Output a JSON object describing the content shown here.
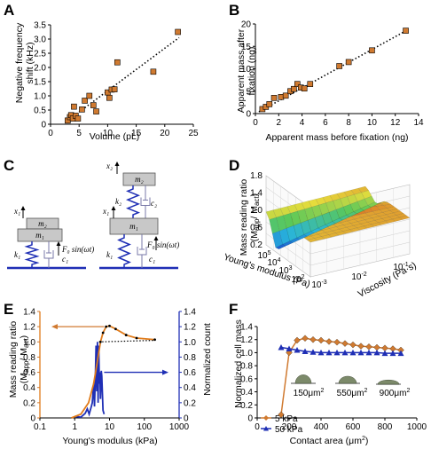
{
  "panel_letters": [
    "A",
    "B",
    "C",
    "D",
    "E",
    "F"
  ],
  "chart_data": [
    {
      "panel": "A",
      "type": "scatter",
      "xlabel": "Volume (pL)",
      "ylabel": "Negative frequency shift (kHz)",
      "xlim": [
        0,
        25
      ],
      "ylim": [
        0,
        3.5
      ],
      "xticks": [
        "0",
        "5",
        "10",
        "15",
        "20",
        "25"
      ],
      "yticks": [
        "0",
        "0.5",
        "1.0",
        "1.5",
        "2.0",
        "2.5",
        "3.0",
        "3.5"
      ],
      "points": [
        [
          3,
          0.13
        ],
        [
          3.4,
          0.25
        ],
        [
          3.6,
          0.32
        ],
        [
          3.9,
          0.2
        ],
        [
          4.1,
          0.62
        ],
        [
          4.4,
          0.3
        ],
        [
          4.8,
          0.2
        ],
        [
          5.5,
          0.52
        ],
        [
          6,
          0.83
        ],
        [
          6.8,
          1.0
        ],
        [
          7.5,
          0.67
        ],
        [
          8,
          0.45
        ],
        [
          10,
          1.12
        ],
        [
          10.3,
          0.93
        ],
        [
          10.7,
          1.22
        ],
        [
          11.2,
          1.23
        ],
        [
          11.7,
          2.18
        ],
        [
          18,
          1.85
        ],
        [
          22.3,
          3.25
        ]
      ],
      "fit": [
        [
          3,
          0.13
        ],
        [
          22.5,
          3.05
        ]
      ],
      "marker_color": "#d07a30"
    },
    {
      "panel": "B",
      "type": "scatter",
      "xlabel": "Apparent mass before fixation (ng)",
      "ylabel": "Apparent mass after fixation (ng)",
      "xlim": [
        0,
        14
      ],
      "ylim": [
        0,
        20
      ],
      "xticks": [
        "0",
        "2",
        "4",
        "6",
        "8",
        "10",
        "12",
        "14"
      ],
      "yticks": [
        "0",
        "5",
        "10",
        "15",
        "20"
      ],
      "points": [
        [
          0.6,
          1.0
        ],
        [
          0.9,
          1.5
        ],
        [
          1.2,
          2.1
        ],
        [
          1.6,
          3.5
        ],
        [
          2.2,
          3.7
        ],
        [
          2.6,
          4.0
        ],
        [
          3.0,
          5.0
        ],
        [
          3.3,
          5.5
        ],
        [
          3.6,
          6.6
        ],
        [
          3.9,
          5.8
        ],
        [
          4.2,
          5.6
        ],
        [
          4.7,
          6.6
        ],
        [
          7.2,
          10.6
        ],
        [
          8.0,
          11.5
        ],
        [
          10.0,
          14.1
        ],
        [
          12.9,
          18.5
        ]
      ],
      "fit": [
        [
          0.3,
          0.4
        ],
        [
          13,
          18.6
        ]
      ],
      "marker_color": "#d07a30"
    },
    {
      "panel": "E",
      "type": "line",
      "xlabel": "Young's modulus (kPa)",
      "ylabel": "Mass reading ratio (Mapp/Mact)",
      "y2label": "Normalized count",
      "xscale": "log",
      "xticks": [
        "0.1",
        "1",
        "10",
        "100",
        "1000"
      ],
      "yticks": [
        "0",
        "0.2",
        "0.4",
        "0.6",
        "0.8",
        "1.0",
        "1.2",
        "1.4"
      ],
      "y2ticks": [
        "0",
        "0.2",
        "0.4",
        "0.6",
        "0.8",
        "1.0",
        "1.2",
        "1.4"
      ],
      "series": [
        {
          "axis": "left",
          "color": "#e07b1a",
          "points": [
            [
              0.8,
              0.0
            ],
            [
              1.5,
              0.05
            ],
            [
              2.5,
              0.2
            ],
            [
              3.5,
              0.45
            ],
            [
              4.5,
              0.75
            ],
            [
              5.5,
              1.0
            ],
            [
              6.5,
              1.12
            ],
            [
              8,
              1.2
            ],
            [
              10,
              1.21
            ],
            [
              15,
              1.17
            ],
            [
              30,
              1.09
            ],
            [
              60,
              1.05
            ],
            [
              200,
              1.03
            ]
          ]
        },
        {
          "axis": "right",
          "color": "#1f2fb5",
          "points": [
            [
              1.0,
              0.02
            ],
            [
              1.5,
              0.01
            ],
            [
              2,
              0.06
            ],
            [
              2.3,
              0.12
            ],
            [
              2.6,
              0.05
            ],
            [
              3,
              0.15
            ],
            [
              3.2,
              0.2
            ],
            [
              3.5,
              0.45
            ],
            [
              3.7,
              0.15
            ],
            [
              3.9,
              0.5
            ],
            [
              4.1,
              0.95
            ],
            [
              4.3,
              0.35
            ],
            [
              4.5,
              1.0
            ],
            [
              4.7,
              0.2
            ],
            [
              4.9,
              0.95
            ],
            [
              5.1,
              0.45
            ],
            [
              5.3,
              0.6
            ],
            [
              5.5,
              0.25
            ],
            [
              5.8,
              0.62
            ],
            [
              6,
              0.55
            ],
            [
              6.5,
              0.1
            ],
            [
              7,
              0.05
            ]
          ]
        }
      ],
      "fit_dotted": [
        [
          5,
          1.0
        ],
        [
          200,
          1.02
        ]
      ]
    },
    {
      "panel": "F",
      "type": "line",
      "xlabel": "Contact area (μm²)",
      "ylabel": "Normalized cell mass",
      "xlim": [
        0,
        1000
      ],
      "ylim": [
        0,
        1.4
      ],
      "xticks": [
        "0",
        "200",
        "400",
        "600",
        "800",
        "1000"
      ],
      "yticks": [
        "0",
        "0.2",
        "0.4",
        "0.6",
        "0.8",
        "1.0",
        "1.2",
        "1.4"
      ],
      "series": [
        {
          "name": "5 kPa",
          "color": "#d07a30",
          "marker": "diamond",
          "points": [
            [
              150,
              0.05
            ],
            [
              200,
              1.0
            ],
            [
              250,
              1.19
            ],
            [
              300,
              1.22
            ],
            [
              350,
              1.2
            ],
            [
              400,
              1.19
            ],
            [
              450,
              1.17
            ],
            [
              500,
              1.16
            ],
            [
              550,
              1.14
            ],
            [
              600,
              1.12
            ],
            [
              650,
              1.1
            ],
            [
              700,
              1.09
            ],
            [
              750,
              1.08
            ],
            [
              800,
              1.07
            ],
            [
              850,
              1.06
            ],
            [
              900,
              1.04
            ]
          ]
        },
        {
          "name": "50 kPa",
          "color": "#1f2fb5",
          "marker": "triangle",
          "points": [
            [
              150,
              1.08
            ],
            [
              200,
              1.06
            ],
            [
              250,
              1.04
            ],
            [
              300,
              1.02
            ],
            [
              350,
              1.01
            ],
            [
              400,
              1.0
            ],
            [
              450,
              1.0
            ],
            [
              500,
              1.0
            ],
            [
              550,
              1.0
            ],
            [
              600,
              1.0
            ],
            [
              650,
              1.0
            ],
            [
              700,
              1.0
            ],
            [
              750,
              1.0
            ],
            [
              800,
              0.99
            ],
            [
              850,
              0.99
            ],
            [
              900,
              0.99
            ]
          ]
        }
      ],
      "annotations": [
        "150μm²",
        "550μm²",
        "900μm²"
      ]
    },
    {
      "panel": "D",
      "type": "surface",
      "zlabel": "Mass reading ratio (Mapp/Mact)",
      "xlabel": "Young's modulus (Pa)",
      "ylabel": "Viscosity (Pa·s)",
      "zticks": [
        "0.2",
        "0.6",
        "1.0",
        "1.4",
        "1.8"
      ],
      "xticks": [
        "10^2",
        "10^3",
        "10^4",
        "10^5"
      ],
      "yticks": [
        "10^-3",
        "10^-2",
        "10^-1"
      ]
    }
  ],
  "diagram_C": {
    "left": {
      "m2": "m₂",
      "m1": "m₁",
      "x1": "x₁",
      "k1": "k₁",
      "c1": "c₁",
      "force": "F₀ sin(ωt)"
    },
    "right": {
      "m2": "m₂",
      "m1": "m₁",
      "x1": "x₁",
      "x2": "x₂",
      "k1": "k₁",
      "k2": "k₂",
      "c1": "c₁",
      "c2": "c₂",
      "force": "F₀ sin(ωt)"
    }
  },
  "colors": {
    "orange": "#d07a30",
    "blue": "#1f2fb5"
  }
}
